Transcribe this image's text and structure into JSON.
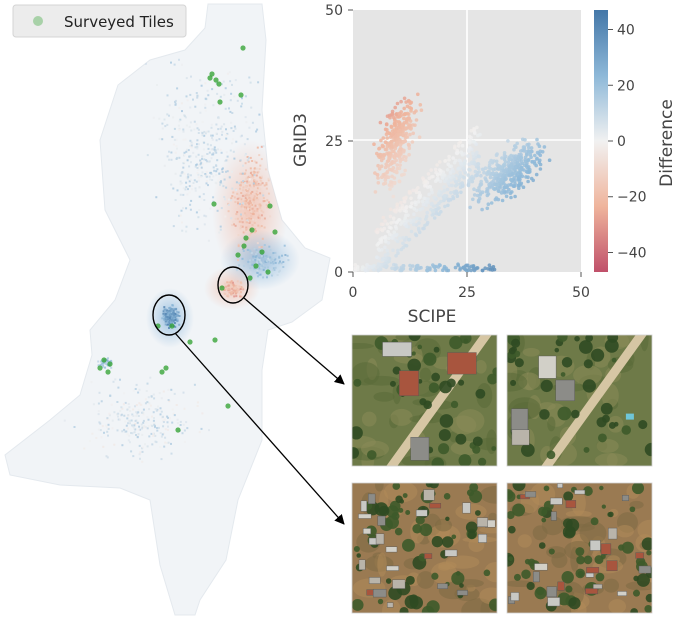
{
  "legend": {
    "label": "Surveyed Tiles",
    "marker_color": "#2ca02c"
  },
  "colors": {
    "positive": "#4682b4",
    "neutral": "#f2f2f2",
    "negative": "#e07a5f",
    "negative_extreme": "#c0506a",
    "survey": "#2ca02c",
    "plot_background": "#e5e5e5",
    "grid": "#ffffff"
  },
  "chart_data": {
    "type": "scatter",
    "xlabel": "SCIPE",
    "ylabel": "GRID3",
    "xlim": [
      0,
      50
    ],
    "ylim": [
      0,
      50
    ],
    "xticks": [
      "0",
      "25",
      "50"
    ],
    "yticks": [
      "0",
      "25",
      "50"
    ],
    "grid": true,
    "colorbar": {
      "label": "Difference",
      "range": [
        -47,
        47
      ],
      "ticks": [
        "40",
        "20",
        "0",
        "−20",
        "−40"
      ],
      "tick_values": [
        40,
        20,
        0,
        -20,
        -40
      ]
    },
    "point_clusters": [
      {
        "x_range": [
          3,
          16
        ],
        "y_range": [
          8,
          36
        ],
        "difference": "negative",
        "approx_points": 320
      },
      {
        "x_range": [
          5,
          28
        ],
        "y_range": [
          5,
          26
        ],
        "difference": "near-zero",
        "approx_points": 420
      },
      {
        "x_range": [
          22,
          46
        ],
        "y_range": [
          4,
          24
        ],
        "difference": "positive",
        "approx_points": 360
      },
      {
        "x_range": [
          0,
          32
        ],
        "y_range": [
          0,
          1.5
        ],
        "difference": "positive",
        "approx_points": 120
      }
    ]
  }
}
